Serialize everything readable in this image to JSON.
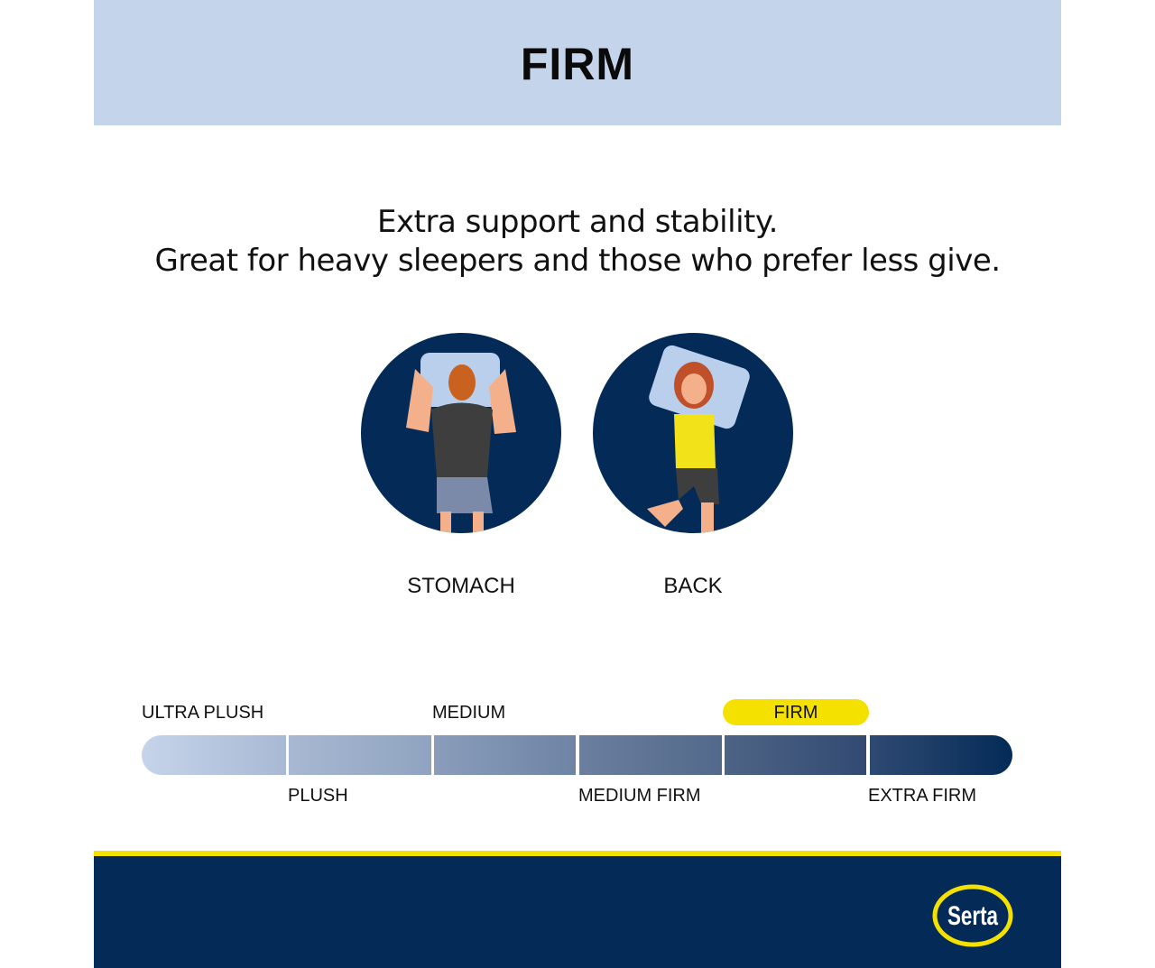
{
  "header": {
    "title": "FIRM",
    "bg": "#c4d4ea"
  },
  "description": {
    "line1": "Extra support and stability.",
    "line2": "Great for heavy sleepers and those who prefer less give."
  },
  "positions": [
    {
      "label": "STOMACH",
      "icon": "stomach-sleeper-illustration"
    },
    {
      "label": "BACK",
      "icon": "back-sleeper-illustration"
    }
  ],
  "scale": {
    "levels": [
      "ULTRA PLUSH",
      "PLUSH",
      "MEDIUM",
      "MEDIUM FIRM",
      "FIRM",
      "EXTRA FIRM"
    ],
    "selected": "FIRM",
    "highlight_color": "#f5e100"
  },
  "footer": {
    "brand": "Serta",
    "bg": "#042b57",
    "accent": "#f5e100"
  }
}
